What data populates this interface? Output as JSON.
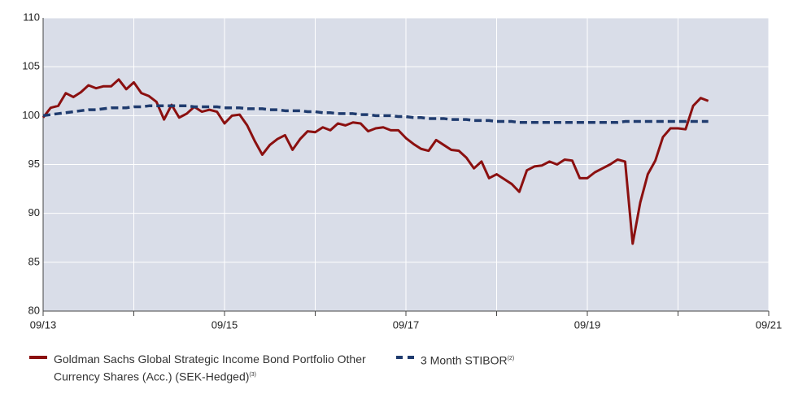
{
  "chart_data": {
    "type": "line",
    "x": [
      "09/13",
      "10/13",
      "11/13",
      "12/13",
      "01/14",
      "02/14",
      "03/14",
      "04/14",
      "05/14",
      "06/14",
      "07/14",
      "08/14",
      "09/14",
      "10/14",
      "11/14",
      "12/14",
      "01/15",
      "02/15",
      "03/15",
      "04/15",
      "05/15",
      "06/15",
      "07/15",
      "08/15",
      "09/15",
      "10/15",
      "11/15",
      "12/15",
      "01/16",
      "02/16",
      "03/16",
      "04/16",
      "05/16",
      "06/16",
      "07/16",
      "08/16",
      "09/16",
      "10/16",
      "11/16",
      "12/16",
      "01/17",
      "02/17",
      "03/17",
      "04/17",
      "05/17",
      "06/17",
      "07/17",
      "08/17",
      "09/17",
      "10/17",
      "11/17",
      "12/17",
      "01/18",
      "02/18",
      "03/18",
      "04/18",
      "05/18",
      "06/18",
      "07/18",
      "08/18",
      "09/18",
      "10/18",
      "11/18",
      "12/18",
      "01/19",
      "02/19",
      "03/19",
      "04/19",
      "05/19",
      "06/19",
      "07/19",
      "08/19",
      "09/19",
      "10/19",
      "11/19",
      "12/19",
      "01/20",
      "02/20",
      "03/20",
      "04/20",
      "05/20",
      "06/20",
      "07/20",
      "08/20",
      "09/20",
      "10/20",
      "11/20",
      "12/20",
      "01/21"
    ],
    "series": [
      {
        "name": "Goldman Sachs Global Strategic Income Bond Portfolio Other Currency Shares (Acc.) (SEK-Hedged)",
        "footnote": "(3)",
        "color": "#8b1010",
        "dash": false,
        "values": [
          99.8,
          100.8,
          101.0,
          102.3,
          101.9,
          102.4,
          103.1,
          102.8,
          103.0,
          103.0,
          103.7,
          102.7,
          103.4,
          102.3,
          102.0,
          101.4,
          99.6,
          101.1,
          99.8,
          100.2,
          100.9,
          100.4,
          100.6,
          100.4,
          99.2,
          100.0,
          100.1,
          99.0,
          97.4,
          96.0,
          97.0,
          97.6,
          98.0,
          96.5,
          97.6,
          98.4,
          98.3,
          98.8,
          98.5,
          99.2,
          99.0,
          99.3,
          99.2,
          98.4,
          98.7,
          98.8,
          98.5,
          98.5,
          97.7,
          97.1,
          96.6,
          96.4,
          97.5,
          97.0,
          96.5,
          96.4,
          95.7,
          94.6,
          95.3,
          93.6,
          94.0,
          93.5,
          93.0,
          92.2,
          94.4,
          94.8,
          94.9,
          95.3,
          95.0,
          95.5,
          95.4,
          93.6,
          93.6,
          94.2,
          94.6,
          95.0,
          95.5,
          95.3,
          86.9,
          91.1,
          94.0,
          95.4,
          97.8,
          98.7,
          98.7,
          98.6,
          101.0,
          101.8,
          101.5
        ]
      },
      {
        "name": "3 Month STIBOR",
        "footnote": "(2)",
        "color": "#1f3b6e",
        "dash": true,
        "values": [
          100.0,
          100.1,
          100.2,
          100.3,
          100.4,
          100.5,
          100.6,
          100.6,
          100.7,
          100.8,
          100.8,
          100.8,
          100.9,
          100.9,
          101.0,
          101.0,
          101.0,
          101.0,
          101.0,
          101.0,
          100.9,
          100.9,
          100.9,
          100.9,
          100.8,
          100.8,
          100.8,
          100.7,
          100.7,
          100.7,
          100.6,
          100.6,
          100.5,
          100.5,
          100.5,
          100.4,
          100.4,
          100.3,
          100.3,
          100.2,
          100.2,
          100.2,
          100.1,
          100.1,
          100.0,
          100.0,
          100.0,
          99.9,
          99.9,
          99.8,
          99.8,
          99.7,
          99.7,
          99.7,
          99.6,
          99.6,
          99.6,
          99.5,
          99.5,
          99.5,
          99.4,
          99.4,
          99.4,
          99.3,
          99.3,
          99.3,
          99.3,
          99.3,
          99.3,
          99.3,
          99.3,
          99.3,
          99.3,
          99.3,
          99.3,
          99.3,
          99.3,
          99.4,
          99.4,
          99.4,
          99.4,
          99.4,
          99.4,
          99.4,
          99.4,
          99.4,
          99.4,
          99.4,
          99.4
        ]
      }
    ],
    "xlim": [
      "09/13",
      "09/21"
    ],
    "xticks": [
      "09/13",
      "09/15",
      "09/17",
      "09/19",
      "09/21"
    ],
    "ylim": [
      80,
      110
    ],
    "yticks": [
      80,
      85,
      90,
      95,
      100,
      105,
      110
    ],
    "grid": true
  }
}
